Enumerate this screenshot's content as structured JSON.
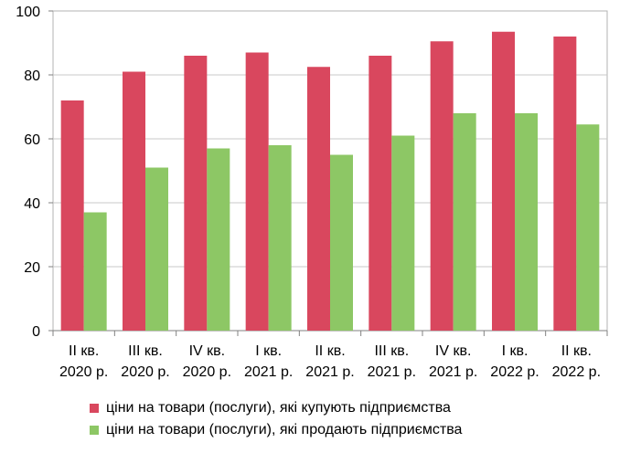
{
  "chart_data": {
    "type": "bar",
    "categories": [
      [
        "II кв.",
        "2020 р."
      ],
      [
        "III кв.",
        "2020 р."
      ],
      [
        "IV кв.",
        "2020 р."
      ],
      [
        "I кв.",
        "2021 р."
      ],
      [
        "II кв.",
        "2021 р."
      ],
      [
        "III кв.",
        "2021 р."
      ],
      [
        "IV кв.",
        "2021 р."
      ],
      [
        "I кв.",
        "2022 р."
      ],
      [
        "II кв.",
        "2022 р."
      ]
    ],
    "series": [
      {
        "name": "ціни на товари (послуги), які купують підприємства",
        "color": "#d9475e",
        "values": [
          72,
          81,
          86,
          87,
          82.5,
          86,
          90.5,
          93.5,
          92
        ]
      },
      {
        "name": "ціни на товари (послуги), які продають підприємства",
        "color": "#8dc765",
        "values": [
          37,
          51,
          57,
          58,
          55,
          61,
          68,
          68,
          64.5
        ]
      }
    ],
    "ylim": [
      0,
      100
    ],
    "yticks": [
      0,
      20,
      40,
      60,
      80,
      100
    ],
    "grid": true,
    "legend": "bottom"
  }
}
